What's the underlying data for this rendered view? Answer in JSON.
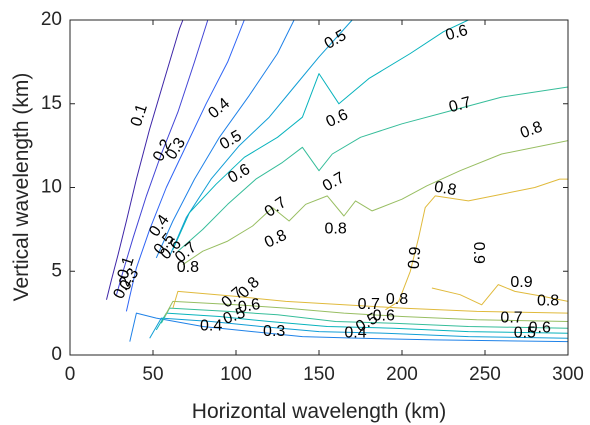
{
  "chart_data": {
    "type": "contour",
    "xlabel": "Horizontal wavelength (km)",
    "ylabel": "Vertical wavelength (km)",
    "xlim": [
      0,
      300
    ],
    "ylim": [
      0,
      20
    ],
    "xticks": [
      "0",
      "50",
      "100",
      "150",
      "200",
      "250",
      "300"
    ],
    "yticks": [
      "0",
      "5",
      "10",
      "15",
      "20"
    ],
    "grid": false,
    "colormap": "parula",
    "levels": [
      {
        "value": 0.1,
        "color": "#3e26a8",
        "points": [
          [
            22,
            3.3
          ],
          [
            25,
            4.5
          ],
          [
            29,
            6
          ],
          [
            34,
            8
          ],
          [
            40,
            10.5
          ],
          [
            48,
            13.5
          ],
          [
            57,
            16.5
          ],
          [
            66,
            19.5
          ],
          [
            68,
            20
          ]
        ]
      },
      {
        "value": 0.2,
        "color": "#4245d6",
        "points": [
          [
            28,
            3.6
          ],
          [
            32,
            5
          ],
          [
            38,
            7
          ],
          [
            46,
            9.5
          ],
          [
            55,
            12
          ],
          [
            65,
            14.5
          ],
          [
            75,
            17.5
          ],
          [
            83,
            20
          ]
        ]
      },
      {
        "value": 0.3,
        "color": "#2f64f5",
        "points": [
          [
            34,
            2.6
          ],
          [
            36,
            3.5
          ],
          [
            40,
            5.2
          ],
          [
            48,
            7.5
          ],
          [
            58,
            10
          ],
          [
            70,
            12.5
          ],
          [
            82,
            15
          ],
          [
            95,
            17.5
          ],
          [
            105,
            20
          ]
        ]
      },
      {
        "value": 0.4,
        "color": "#1f82e8",
        "points": [
          [
            36,
            0.8
          ],
          [
            40,
            2.5
          ],
          [
            52,
            2.2
          ],
          [
            80,
            1.7
          ],
          [
            110,
            1.4
          ],
          [
            140,
            1.1
          ],
          [
            175,
            1
          ],
          [
            220,
            0.9
          ],
          [
            300,
            0.8
          ]
        ]
      },
      {
        "value": 0.4,
        "color": "#1f82e8",
        "points": [
          [
            52,
            5.8
          ],
          [
            62,
            8
          ],
          [
            75,
            10.5
          ],
          [
            90,
            13
          ],
          [
            108,
            15.5
          ],
          [
            125,
            18
          ],
          [
            135,
            20
          ]
        ]
      },
      {
        "value": 0.5,
        "color": "#119ed6",
        "points": [
          [
            60,
            5.9
          ],
          [
            70,
            8.2
          ],
          [
            85,
            10.5
          ],
          [
            102,
            12.5
          ],
          [
            120,
            14.2
          ],
          [
            135,
            16
          ],
          [
            150,
            17.8
          ],
          [
            170,
            20
          ]
        ]
      },
      {
        "value": 0.5,
        "color": "#119ed6",
        "points": [
          [
            48,
            1
          ],
          [
            55,
            2.2
          ],
          [
            85,
            2
          ],
          [
            115,
            1.7
          ],
          [
            150,
            1.4
          ],
          [
            190,
            1.3
          ],
          [
            240,
            1.1
          ],
          [
            300,
            1
          ]
        ]
      },
      {
        "value": 0.6,
        "color": "#08b3bd",
        "points": [
          [
            62,
            6.3
          ],
          [
            72,
            8.5
          ],
          [
            88,
            10.2
          ],
          [
            105,
            11.8
          ],
          [
            125,
            13
          ],
          [
            140,
            14.2
          ],
          [
            150,
            16.8
          ],
          [
            162,
            15
          ],
          [
            180,
            16.5
          ],
          [
            205,
            18
          ],
          [
            225,
            19.3
          ],
          [
            240,
            20
          ]
        ]
      },
      {
        "value": 0.6,
        "color": "#08b3bd",
        "points": [
          [
            52,
            1.5
          ],
          [
            58,
            2.5
          ],
          [
            90,
            2.3
          ],
          [
            120,
            2
          ],
          [
            155,
            1.7
          ],
          [
            195,
            1.6
          ],
          [
            240,
            1.4
          ],
          [
            300,
            1.3
          ]
        ]
      },
      {
        "value": 0.7,
        "color": "#36bd9a",
        "points": [
          [
            65,
            6.2
          ],
          [
            80,
            7.5
          ],
          [
            95,
            9
          ],
          [
            112,
            10.5
          ],
          [
            128,
            11.5
          ],
          [
            140,
            12.4
          ],
          [
            150,
            11
          ],
          [
            158,
            12
          ],
          [
            175,
            13
          ],
          [
            200,
            13.8
          ],
          [
            230,
            14.6
          ],
          [
            260,
            15.4
          ],
          [
            300,
            16
          ]
        ]
      },
      {
        "value": 0.7,
        "color": "#36bd9a",
        "points": [
          [
            55,
            1.9
          ],
          [
            60,
            2.8
          ],
          [
            95,
            2.6
          ],
          [
            125,
            2.4
          ],
          [
            160,
            2
          ],
          [
            195,
            1.9
          ],
          [
            240,
            1.7
          ],
          [
            300,
            1.6
          ]
        ]
      },
      {
        "value": 0.8,
        "color": "#98be62",
        "points": [
          [
            68,
            5.4
          ],
          [
            80,
            6.2
          ],
          [
            95,
            6.8
          ],
          [
            110,
            7.7
          ],
          [
            122,
            8.8
          ],
          [
            132,
            8
          ],
          [
            142,
            9
          ],
          [
            155,
            9.5
          ],
          [
            165,
            8.3
          ],
          [
            172,
            9.2
          ],
          [
            182,
            8.6
          ],
          [
            200,
            9.3
          ],
          [
            215,
            10.1
          ],
          [
            235,
            11
          ],
          [
            260,
            12
          ],
          [
            300,
            12.8
          ]
        ]
      },
      {
        "value": 0.8,
        "color": "#98be62",
        "points": [
          [
            57,
            2.3
          ],
          [
            62,
            3.2
          ],
          [
            100,
            3
          ],
          [
            130,
            2.8
          ],
          [
            165,
            2.5
          ],
          [
            200,
            2.3
          ],
          [
            245,
            2.1
          ],
          [
            300,
            2
          ]
        ]
      },
      {
        "value": 0.9,
        "color": "#e0ba3c",
        "points": [
          [
            190,
            2.7
          ],
          [
            198,
            3.2
          ],
          [
            205,
            5
          ],
          [
            210,
            7
          ],
          [
            214,
            8.8
          ],
          [
            220,
            9.5
          ],
          [
            240,
            9.2
          ],
          [
            260,
            9.6
          ],
          [
            280,
            10
          ],
          [
            295,
            10.5
          ],
          [
            300,
            10.5
          ]
        ]
      },
      {
        "value": 0.9,
        "color": "#e0ba3c",
        "points": [
          [
            62,
            2.8
          ],
          [
            65,
            3.8
          ],
          [
            100,
            3.5
          ],
          [
            130,
            3.2
          ],
          [
            165,
            3
          ],
          [
            200,
            2.8
          ],
          [
            245,
            2.6
          ],
          [
            300,
            2.5
          ]
        ]
      },
      {
        "value": 0.9,
        "color": "#e0ba3c",
        "points": [
          [
            218,
            4
          ],
          [
            235,
            3.6
          ],
          [
            248,
            3
          ],
          [
            258,
            4.2
          ],
          [
            268,
            3.8
          ],
          [
            285,
            3.5
          ],
          [
            300,
            3.2
          ]
        ]
      }
    ],
    "labels": [
      {
        "text": "0.1",
        "x": 42,
        "y": 14.3,
        "angle": -72
      },
      {
        "text": "0.2",
        "x": 56,
        "y": 12.2,
        "angle": -62
      },
      {
        "text": "0.3",
        "x": 64,
        "y": 12.3,
        "angle": -58
      },
      {
        "text": "0.4",
        "x": 90,
        "y": 14.7,
        "angle": -40
      },
      {
        "text": "0.5",
        "x": 97,
        "y": 12.8,
        "angle": -30
      },
      {
        "text": "0.6",
        "x": 102,
        "y": 10.8,
        "angle": -30
      },
      {
        "text": "0.7",
        "x": 124,
        "y": 8.8,
        "angle": -35
      },
      {
        "text": "0.8",
        "x": 124,
        "y": 6.9,
        "angle": -25
      },
      {
        "text": "0.5",
        "x": 160,
        "y": 18.8,
        "angle": -30
      },
      {
        "text": "0.6",
        "x": 161,
        "y": 14.1,
        "angle": -25
      },
      {
        "text": "0.7",
        "x": 159,
        "y": 10.3,
        "angle": -30
      },
      {
        "text": "0.8",
        "x": 160,
        "y": 7.5,
        "angle": 0
      },
      {
        "text": "0.6",
        "x": 233,
        "y": 19.2,
        "angle": -15
      },
      {
        "text": "0.7",
        "x": 235,
        "y": 14.9,
        "angle": -15
      },
      {
        "text": "0.8",
        "x": 278,
        "y": 13.4,
        "angle": -20
      },
      {
        "text": "0.8",
        "x": 226,
        "y": 9.9,
        "angle": 10
      },
      {
        "text": "0.9",
        "x": 208,
        "y": 5.8,
        "angle": -85
      },
      {
        "text": "0.9",
        "x": 246,
        "y": 6.1,
        "angle": 90
      },
      {
        "text": "0.9",
        "x": 272,
        "y": 4.3,
        "angle": 0
      },
      {
        "text": "0.8",
        "x": 288,
        "y": 3.2,
        "angle": 0
      },
      {
        "text": "0.7",
        "x": 266,
        "y": 2.2,
        "angle": 0
      },
      {
        "text": "0.6",
        "x": 283,
        "y": 1.6,
        "angle": 0
      },
      {
        "text": "0.5",
        "x": 274,
        "y": 1.3,
        "angle": 0
      },
      {
        "text": "0.1",
        "x": 34,
        "y": 5.2,
        "angle": -72
      },
      {
        "text": "0.3",
        "x": 36,
        "y": 4.5,
        "angle": -60
      },
      {
        "text": "0.2",
        "x": 32,
        "y": 4.0,
        "angle": -65
      },
      {
        "text": "0.4",
        "x": 54,
        "y": 7.7,
        "angle": -55
      },
      {
        "text": "0.5",
        "x": 57,
        "y": 6.6,
        "angle": -50
      },
      {
        "text": "0.6",
        "x": 61,
        "y": 6.3,
        "angle": -45
      },
      {
        "text": "0.7",
        "x": 70,
        "y": 6.1,
        "angle": -40
      },
      {
        "text": "0.8",
        "x": 71,
        "y": 5.2,
        "angle": 0
      },
      {
        "text": "0.8",
        "x": 108,
        "y": 4.0,
        "angle": -45
      },
      {
        "text": "0.7",
        "x": 98,
        "y": 3.4,
        "angle": -40
      },
      {
        "text": "0.6",
        "x": 108,
        "y": 2.9,
        "angle": -10
      },
      {
        "text": "0.5",
        "x": 99,
        "y": 2.3,
        "angle": -20
      },
      {
        "text": "0.4",
        "x": 85,
        "y": 1.7,
        "angle": 0
      },
      {
        "text": "0.3",
        "x": 123,
        "y": 1.4,
        "angle": 0
      },
      {
        "text": "0.7",
        "x": 180,
        "y": 3.0,
        "angle": 0
      },
      {
        "text": "0.8",
        "x": 197,
        "y": 3.3,
        "angle": 0
      },
      {
        "text": "0.6",
        "x": 189,
        "y": 2.3,
        "angle": 0
      },
      {
        "text": "0.5",
        "x": 179,
        "y": 1.9,
        "angle": -30
      },
      {
        "text": "0.4",
        "x": 172,
        "y": 1.3,
        "angle": 0
      }
    ]
  }
}
